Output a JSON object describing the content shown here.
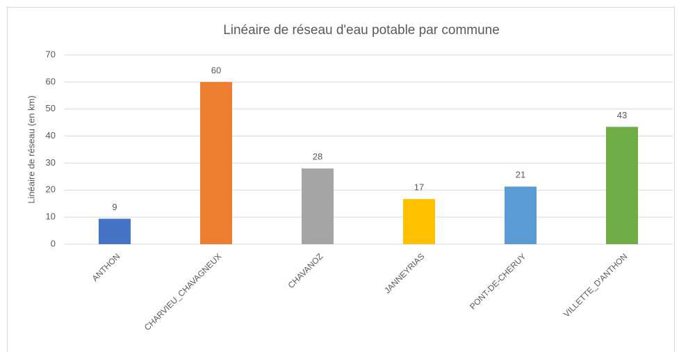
{
  "chart_data": {
    "type": "bar",
    "title": "Linéaire de réseau d'eau potable par commune",
    "y_label": "Linéaire de réseau (en km)",
    "categories": [
      "ANTHON",
      "CHARVIEU_CHAVAGNEUX",
      "CHAVANOZ",
      "JANNEYRIAS",
      "PONT-DE-CHERUY",
      "VILLETTE_D'ANTHON"
    ],
    "values": [
      9.4,
      60,
      28,
      16.7,
      21.3,
      43.4
    ],
    "value_labels": [
      "9",
      "60",
      "28",
      "17",
      "21",
      "43"
    ],
    "colors": [
      "#4472c4",
      "#ed7d31",
      "#a5a5a5",
      "#ffc000",
      "#5b9bd5",
      "#70ad47"
    ],
    "ylim": [
      0,
      70
    ],
    "yticks": [
      0,
      10,
      20,
      30,
      40,
      50,
      60,
      70
    ],
    "grid": true
  }
}
